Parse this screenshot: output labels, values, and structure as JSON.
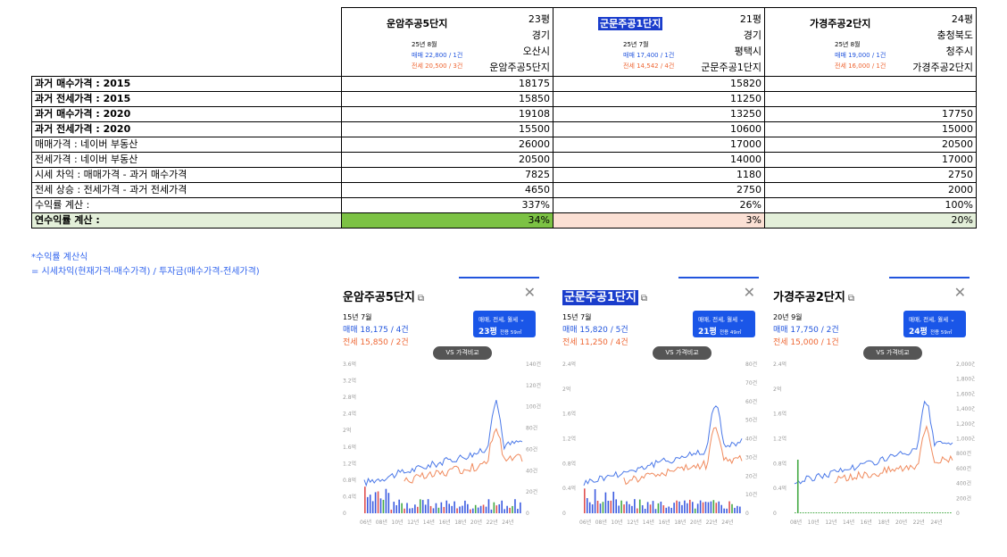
{
  "complexes": [
    {
      "name": "운암주공5단지",
      "size": "23평",
      "province": "경기",
      "city": "오산시",
      "name_dup": "운암주공5단지",
      "month": "25년 8월",
      "sale": "매매 22,800 / 1건",
      "rent": "전세 20,500 / 3건",
      "highlight": false
    },
    {
      "name": "군문주공1단지",
      "size": "21평",
      "province": "경기",
      "city": "평택시",
      "name_dup": "군문주공1단지",
      "month": "25년 7월",
      "sale": "매매 17,400 / 1건",
      "rent": "전세 14,542 / 4건",
      "highlight": true
    },
    {
      "name": "가경주공2단지",
      "size": "24평",
      "province": "충청북도",
      "city": "청주시",
      "name_dup": "가경주공2단지",
      "month": "25년 8월",
      "sale": "매매 19,000 / 1건",
      "rent": "전세 16,000 / 1건",
      "highlight": false
    }
  ],
  "rows": [
    {
      "label": "과거 매수가격 : 2015",
      "bold": true,
      "values": [
        "18175",
        "15820",
        ""
      ]
    },
    {
      "label": "과거 전세가격 : 2015",
      "bold": true,
      "values": [
        "15850",
        "11250",
        ""
      ]
    },
    {
      "label": "과거 매수가격 : 2020",
      "bold": true,
      "values": [
        "19108",
        "13250",
        "17750"
      ]
    },
    {
      "label": "과거 전세가격 : 2020",
      "bold": true,
      "values": [
        "15500",
        "10600",
        "15000"
      ]
    },
    {
      "label": "매매가격 : 네이버 부동산",
      "bold": false,
      "values": [
        "26000",
        "17000",
        "20500"
      ]
    },
    {
      "label": "전세가격 : 네이버 부동산",
      "bold": false,
      "values": [
        "20500",
        "14000",
        "17000"
      ]
    },
    {
      "label": "시세 차익 : 매매가격 - 과거 매수가격",
      "bold": false,
      "values": [
        "7825",
        "1180",
        "2750"
      ]
    },
    {
      "label": "전세 상승 : 전세가격 - 과거 전세가격",
      "bold": false,
      "values": [
        "4650",
        "2750",
        "2000"
      ]
    },
    {
      "label": "수익률 계산 :",
      "bold": false,
      "values": [
        "337%",
        "26%",
        "100%"
      ]
    }
  ],
  "final_row": {
    "label": "연수익률 계산 :",
    "values": [
      "34%",
      "3%",
      "20%"
    ]
  },
  "notes": [
    "*수익률 계산식",
    "= 시세차익(현재가격-매수가격) / 투자금(매수가격-전세가격)"
  ],
  "cards": [
    {
      "title": "운암주공5단지",
      "date": "15년 7월",
      "sale": "매매 18,175 / 4건",
      "rent": "전세 15,850 / 2건",
      "pill_top": "매매, 전세, 월세 ⌄",
      "pill_size": "23평",
      "pill_area": "전용 59㎡",
      "vs": "VS 가격비교",
      "left_ticks": [
        "3.6억",
        "3.2억",
        "2.8억",
        "2.4억",
        "2억",
        "1.6억",
        "1.2억",
        "0.8억",
        "0.4억",
        "0"
      ],
      "right_ticks": [
        "140건",
        "120건",
        "100건",
        "80건",
        "60건",
        "40건",
        "20건",
        "0"
      ],
      "x_ticks": [
        "06년",
        "08년",
        "10년",
        "12년",
        "14년",
        "16년",
        "18년",
        "20년",
        "22년",
        "24년"
      ]
    },
    {
      "title": "군문주공1단지",
      "date": "15년 7월",
      "sale": "매매 15,820 / 5건",
      "rent": "전세 11,250 / 4건",
      "pill_top": "매매, 전세, 월세 ⌄",
      "pill_size": "21평",
      "pill_area": "전용 49㎡",
      "vs": "VS 가격비교",
      "left_ticks": [
        "2.4억",
        "2억",
        "1.6억",
        "1.2억",
        "0.8억",
        "0.4억",
        "0"
      ],
      "right_ticks": [
        "80건",
        "70건",
        "60건",
        "50건",
        "40건",
        "30건",
        "20건",
        "10건",
        "0"
      ],
      "x_ticks": [
        "06년",
        "08년",
        "10년",
        "12년",
        "14년",
        "16년",
        "18년",
        "20년",
        "22년",
        "24년"
      ]
    },
    {
      "title": "가경주공2단지",
      "date": "20년 9월",
      "sale": "매매 17,750 / 2건",
      "rent": "전세 15,000 / 1건",
      "pill_top": "매매, 전세, 월세 ⌄",
      "pill_size": "24평",
      "pill_area": "전용 59㎡",
      "vs": "VS 가격비교",
      "left_ticks": [
        "2.4억",
        "2억",
        "1.6억",
        "1.2억",
        "0.8억",
        "0.4억",
        "0"
      ],
      "right_ticks": [
        "2,000건",
        "1,800건",
        "1,600건",
        "1,400건",
        "1,200건",
        "1,000건",
        "800건",
        "600건",
        "400건",
        "200건",
        "0"
      ],
      "x_ticks": [
        "08년",
        "10년",
        "12년",
        "14년",
        "16년",
        "18년",
        "20년",
        "22년",
        "24년"
      ]
    }
  ],
  "colors": {
    "sale": "#4a78e8",
    "rent": "#f08a5d",
    "volume_sale": "#3b5be0",
    "volume_rent": "#e05050",
    "volume_other": "#44aa44"
  }
}
